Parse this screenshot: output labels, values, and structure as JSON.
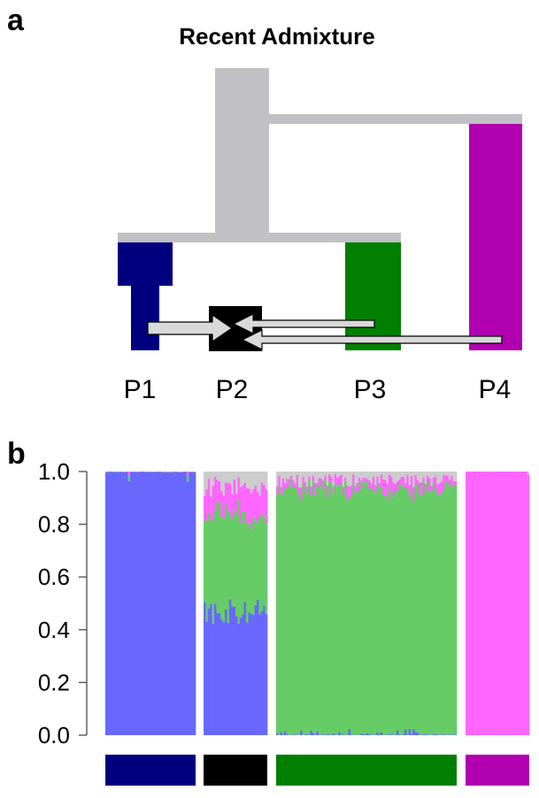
{
  "panel_a": {
    "letter": "a",
    "title": "Recent Admixture",
    "populations": [
      "P1",
      "P2",
      "P3",
      "P4"
    ],
    "colors": {
      "tree": "#c1c0c4",
      "P1": "#00007f",
      "P2": "#000000",
      "P3": "#007f00",
      "P4": "#b000b0",
      "arrow_fill": "#d9d9d9",
      "arrow_stroke": "#000000"
    },
    "gene_flow": [
      {
        "from": "P1",
        "to": "P2"
      },
      {
        "from": "P3",
        "to": "P2"
      },
      {
        "from": "P4",
        "to": "P2"
      }
    ]
  },
  "panel_b": {
    "letter": "b"
  },
  "chart_data": {
    "type": "stacked-bar",
    "ylim": [
      0.0,
      1.0
    ],
    "yticks": [
      "0.0",
      "0.2",
      "0.4",
      "0.6",
      "0.8",
      "1.0"
    ],
    "group_order": [
      "P1",
      "P2",
      "P3",
      "P4"
    ],
    "series_colors": {
      "blue": "#6868ff",
      "green": "#66cc66",
      "magenta": "#ff66ff",
      "gray": "#cccccc"
    },
    "group_bar_colors": {
      "P1": "#00007f",
      "P2": "#000000",
      "P3": "#007f00",
      "P4": "#b000b0"
    },
    "groups": [
      {
        "name": "P1",
        "individuals": 40,
        "mean": {
          "blue": 0.997,
          "green": 0.002,
          "magenta": 0.001,
          "gray": 0.0
        }
      },
      {
        "name": "P2",
        "individuals": 30,
        "mean": {
          "blue": 0.47,
          "green": 0.36,
          "magenta": 0.11,
          "gray": 0.06
        }
      },
      {
        "name": "P3",
        "individuals": 90,
        "mean": {
          "blue": 0.01,
          "green": 0.91,
          "magenta": 0.04,
          "gray": 0.04
        }
      },
      {
        "name": "P4",
        "individuals": 30,
        "mean": {
          "blue": 0.0,
          "green": 0.0,
          "magenta": 0.999,
          "gray": 0.001
        }
      }
    ]
  }
}
